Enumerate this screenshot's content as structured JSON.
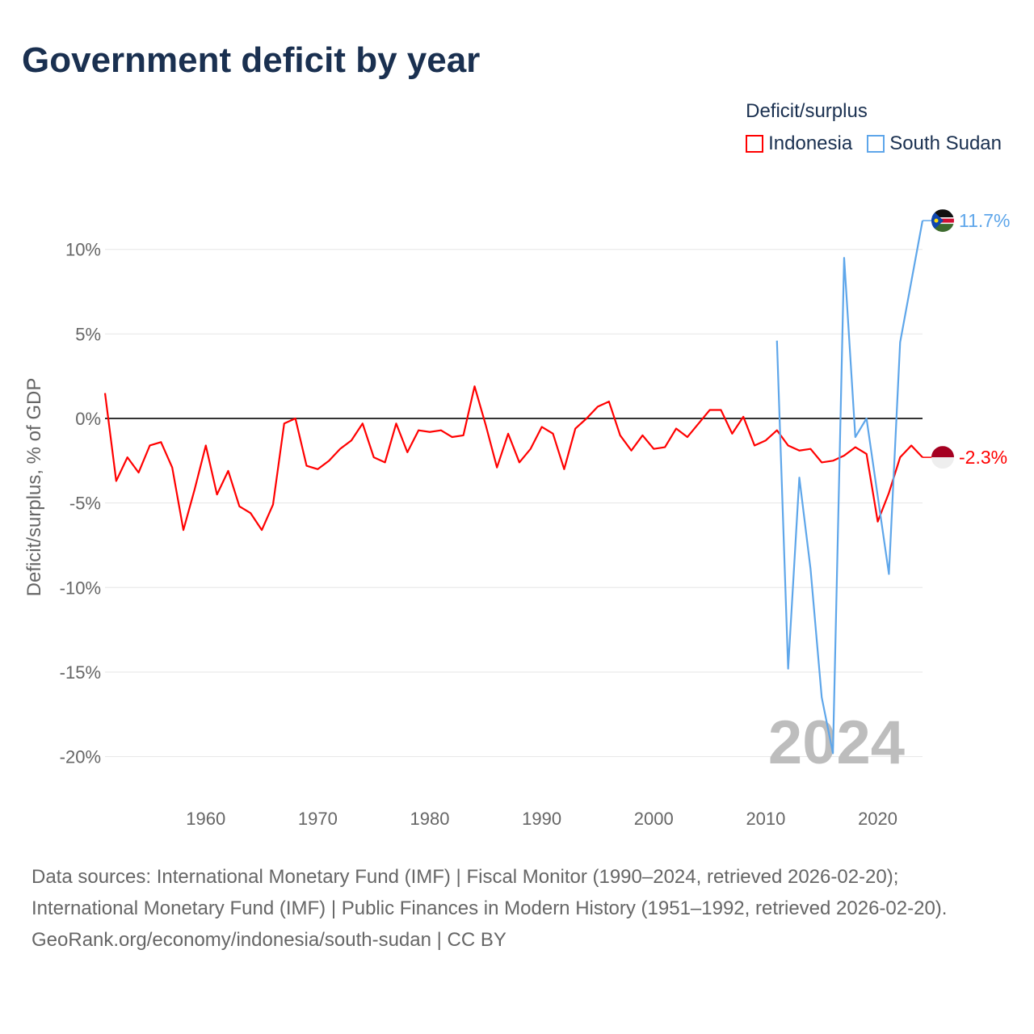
{
  "title": "Government deficit by year",
  "chart_data": {
    "type": "line",
    "title": "Government deficit by year",
    "ylabel": "Deficit/surplus, % of GDP",
    "xlabel": "",
    "ylim": [
      -22,
      12
    ],
    "xlim": [
      1951,
      2024
    ],
    "yticks": [
      10,
      5,
      0,
      -5,
      -10,
      -15,
      -20
    ],
    "ytick_labels": [
      "10%",
      "5%",
      "0%",
      "-5%",
      "-10%",
      "-15%",
      "-20%"
    ],
    "xticks": [
      1960,
      1970,
      1980,
      1990,
      2000,
      2010,
      2020
    ],
    "xtick_labels": [
      "1960",
      "1970",
      "1980",
      "1990",
      "2000",
      "2010",
      "2020"
    ],
    "grid": true,
    "legend_title": "Deficit/surplus",
    "legend_position": "top-right",
    "year_watermark": "2024",
    "series": [
      {
        "name": "Indonesia",
        "color": "#ff0000",
        "end_label": "-2.3%",
        "start_year": 1951,
        "values": [
          1.5,
          -3.7,
          -2.3,
          -3.2,
          -1.6,
          -1.4,
          -2.9,
          -6.6,
          -4.2,
          -1.6,
          -4.5,
          -3.1,
          -5.2,
          -5.6,
          -6.6,
          -5.1,
          -0.3,
          0.0,
          -2.8,
          -3.0,
          -2.5,
          -1.8,
          -1.3,
          -0.3,
          -2.3,
          -2.6,
          -0.3,
          -2.0,
          -0.7,
          -0.8,
          -0.7,
          -1.1,
          -1.0,
          1.9,
          -0.4,
          -2.9,
          -0.9,
          -2.6,
          -1.8,
          -0.5,
          -0.9,
          -3.0,
          -0.6,
          0.0,
          0.7,
          1.0,
          -1.0,
          -1.9,
          -1.0,
          -1.8,
          -1.7,
          -0.6,
          -1.1,
          -0.3,
          0.5,
          0.5,
          -0.9,
          0.1,
          -1.6,
          -1.3,
          -0.7,
          -1.6,
          -1.9,
          -1.8,
          -2.6,
          -2.5,
          -2.2,
          -1.7,
          -2.1,
          -6.1,
          -4.4,
          -2.3,
          -1.6,
          -2.3
        ]
      },
      {
        "name": "South Sudan",
        "color": "#5ea6ea",
        "end_label": "11.7%",
        "start_year": 2011,
        "values": [
          4.6,
          -14.8,
          -3.5,
          -8.9,
          -16.5,
          -19.8,
          9.5,
          -1.1,
          0.0,
          -4.6,
          -9.2,
          4.5,
          8.1,
          11.7
        ]
      }
    ]
  },
  "sources": {
    "line1": "Data sources: International Monetary Fund (IMF) | Fiscal Monitor (1990–2024, retrieved 2026-02-20); International Monetary Fund (IMF) | Public Finances in Modern History (1951–1992, retrieved 2026-02-20).",
    "line2": "GeoRank.org/economy/indonesia/south-sudan | CC BY"
  }
}
